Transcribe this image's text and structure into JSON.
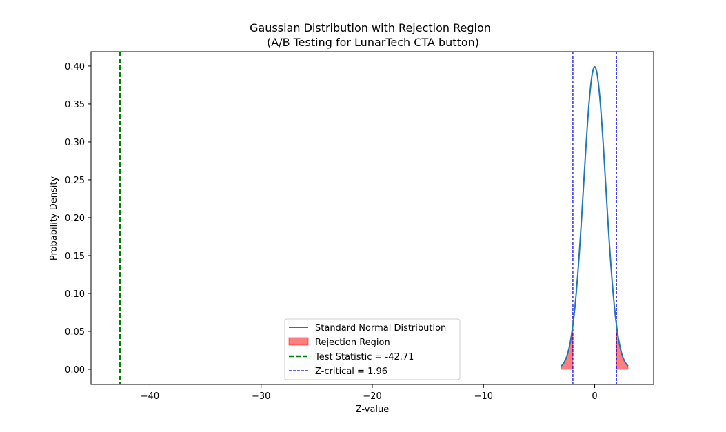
{
  "chart_data": {
    "type": "line",
    "title": "Gaussian Distribution with Rejection Region",
    "subtitle": "(A/B Testing for LunarTech CTA button)",
    "xlabel": "Z-value",
    "ylabel": "Probability Density",
    "xlim": [
      -45.3,
      5.3
    ],
    "ylim": [
      -0.02,
      0.419
    ],
    "xticks": [
      -40,
      -30,
      -20,
      -10,
      0
    ],
    "xtick_labels": [
      "−40",
      "−30",
      "−20",
      "−10",
      "0"
    ],
    "yticks": [
      0.0,
      0.05,
      0.1,
      0.15,
      0.2,
      0.25,
      0.3,
      0.35,
      0.4
    ],
    "ytick_labels": [
      "0.00",
      "0.05",
      "0.10",
      "0.15",
      "0.20",
      "0.25",
      "0.30",
      "0.35",
      "0.40"
    ],
    "grid": false,
    "legend_placement": "lower-center",
    "distribution": {
      "name": "Standard Normal Distribution",
      "mean": 0,
      "std": 1,
      "x_range": [
        -3,
        3
      ],
      "color": "#1f77b4"
    },
    "rejection_region": {
      "name": "Rejection Region",
      "intervals": [
        [
          -3,
          -1.96
        ],
        [
          1.96,
          3
        ]
      ],
      "color": "#ff0000",
      "opacity": 0.5
    },
    "test_statistic": {
      "name": "Test Statistic = -42.71",
      "value": -42.71,
      "color": "#008000"
    },
    "z_critical": {
      "name": "Z-critical = 1.96",
      "values": [
        -1.96,
        1.96
      ],
      "color": "#0000ff"
    }
  }
}
